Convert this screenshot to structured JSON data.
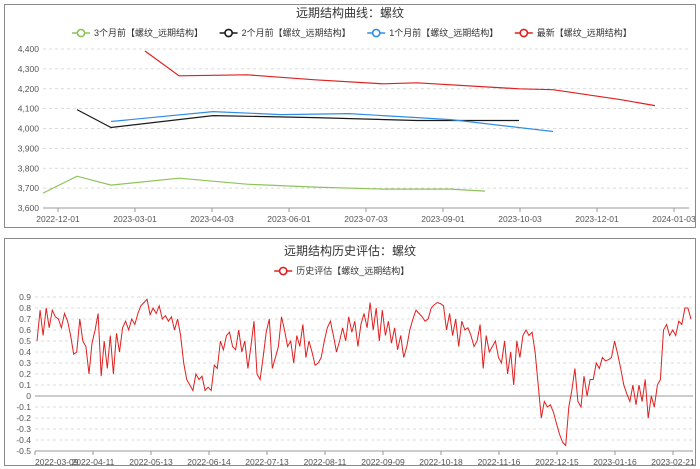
{
  "charts": [
    {
      "title": "远期结构曲线：螺纹",
      "type": "line",
      "y_ticks": [
        "3,600",
        "3,700",
        "3,800",
        "3,900",
        "4,000",
        "4,100",
        "4,200",
        "4,300",
        "4,400"
      ],
      "x_ticks": [
        "2022-12-01",
        "2023-03-01",
        "2023-04-03",
        "2023-06-01",
        "2023-07-03",
        "2023-09-01",
        "2023-10-03",
        "2023-12-01",
        "2024-01-03"
      ],
      "ylim": [
        3600,
        4400
      ],
      "grid": "horizontal dashed",
      "legend": "top-center",
      "series": [
        {
          "name": "3个月前【螺纹_远期结构】",
          "color": "#8ec35a",
          "points": [
            [
              0,
              3675
            ],
            [
              1,
              3760
            ],
            [
              2,
              3715
            ],
            [
              4,
              3750
            ],
            [
              6,
              3720
            ],
            [
              8,
              3705
            ],
            [
              10,
              3695
            ],
            [
              12,
              3695
            ],
            [
              13,
              3685
            ]
          ]
        },
        {
          "name": "2个月前【螺纹_远期结构】",
          "color": "#1a1a1a",
          "points": [
            [
              1,
              4095
            ],
            [
              2,
              4005
            ],
            [
              5,
              4065
            ],
            [
              8,
              4055
            ],
            [
              11,
              4040
            ],
            [
              14,
              4040
            ]
          ]
        },
        {
          "name": "1个月前【螺纹_远期结构】",
          "color": "#2f8de4",
          "points": [
            [
              2,
              4035
            ],
            [
              5,
              4085
            ],
            [
              7,
              4070
            ],
            [
              9,
              4075
            ],
            [
              12,
              4045
            ],
            [
              15,
              3985
            ]
          ]
        },
        {
          "name": "最新【螺纹_远期结构】",
          "color": "#e02020",
          "points": [
            [
              3,
              4390
            ],
            [
              4,
              4265
            ],
            [
              6,
              4270
            ],
            [
              8,
              4245
            ],
            [
              10,
              4225
            ],
            [
              11,
              4230
            ],
            [
              14,
              4200
            ],
            [
              15,
              4195
            ],
            [
              17,
              4145
            ],
            [
              18,
              4115
            ]
          ]
        }
      ]
    },
    {
      "title": "远期结构历史评估：螺纹",
      "type": "line",
      "y_ticks": [
        "-0.5",
        "-0.4",
        "-0.3",
        "-0.2",
        "-0.1",
        "0",
        "0.1",
        "0.2",
        "0.3",
        "0.4",
        "0.5",
        "0.6",
        "0.7",
        "0.8",
        "0.9"
      ],
      "x_ticks": [
        "2022-03-09",
        "2022-04-11",
        "2022-05-13",
        "2022-06-14",
        "2022-07-13",
        "2022-08-11",
        "2022-09-09",
        "2022-10-18",
        "2022-11-16",
        "2022-12-15",
        "2023-01-16",
        "2023-02-21"
      ],
      "ylim": [
        -0.5,
        0.9
      ],
      "grid": "horizontal dashed",
      "legend": "top-center",
      "series": [
        {
          "name": "历史评估【螺纹_远期结构】",
          "color": "#e02020",
          "values": [
            0.5,
            0.78,
            0.55,
            0.8,
            0.62,
            0.78,
            0.72,
            0.7,
            0.62,
            0.75,
            0.68,
            0.55,
            0.38,
            0.4,
            0.7,
            0.5,
            0.45,
            0.2,
            0.48,
            0.6,
            0.75,
            0.18,
            0.5,
            0.25,
            0.55,
            0.2,
            0.57,
            0.4,
            0.62,
            0.68,
            0.6,
            0.7,
            0.65,
            0.75,
            0.82,
            0.85,
            0.88,
            0.74,
            0.8,
            0.75,
            0.82,
            0.7,
            0.73,
            0.68,
            0.72,
            0.6,
            0.7,
            0.55,
            0.3,
            0.15,
            0.1,
            0.05,
            0.2,
            0.15,
            0.18,
            0.05,
            0.08,
            0.05,
            0.28,
            0.25,
            0.5,
            0.42,
            0.55,
            0.58,
            0.45,
            0.42,
            0.6,
            0.4,
            0.5,
            0.25,
            0.45,
            0.68,
            0.2,
            0.15,
            0.35,
            0.58,
            0.7,
            0.25,
            0.35,
            0.45,
            0.72,
            0.6,
            0.45,
            0.5,
            0.3,
            0.55,
            0.45,
            0.65,
            0.35,
            0.5,
            0.4,
            0.28,
            0.3,
            0.35,
            0.5,
            0.62,
            0.68,
            0.55,
            0.4,
            0.5,
            0.62,
            0.5,
            0.72,
            0.58,
            0.68,
            0.45,
            0.65,
            0.75,
            0.62,
            0.85,
            0.6,
            0.8,
            0.5,
            0.78,
            0.55,
            0.68,
            0.48,
            0.62,
            0.42,
            0.55,
            0.35,
            0.45,
            0.6,
            0.7,
            0.78,
            0.75,
            0.72,
            0.68,
            0.7,
            0.8,
            0.83,
            0.85,
            0.84,
            0.82,
            0.6,
            0.75,
            0.55,
            0.7,
            0.45,
            0.68,
            0.6,
            0.62,
            0.55,
            0.45,
            0.5,
            0.65,
            0.25,
            0.55,
            0.4,
            0.45,
            0.5,
            0.35,
            0.3,
            0.5,
            0.2,
            0.4,
            0.1,
            0.5,
            0.35,
            0.55,
            0.6,
            0.55,
            0.58,
            0.4,
            0.1,
            -0.2,
            -0.05,
            -0.1,
            -0.08,
            -0.15,
            -0.25,
            -0.35,
            -0.42,
            -0.45,
            -0.1,
            0.05,
            0.25,
            -0.05,
            -0.1,
            0.18,
            0.0,
            0.15,
            0.15,
            0.3,
            0.25,
            0.35,
            0.32,
            0.33,
            0.35,
            0.5,
            0.38,
            0.25,
            0.1,
            0.02,
            -0.05,
            0.1,
            -0.08,
            0.1,
            -0.05,
            0.15,
            -0.2,
            0.0,
            -0.1,
            0.1,
            0.15,
            0.6,
            0.65,
            0.55,
            0.6,
            0.55,
            0.68,
            0.65,
            0.8,
            0.8,
            0.7
          ]
        }
      ]
    }
  ]
}
